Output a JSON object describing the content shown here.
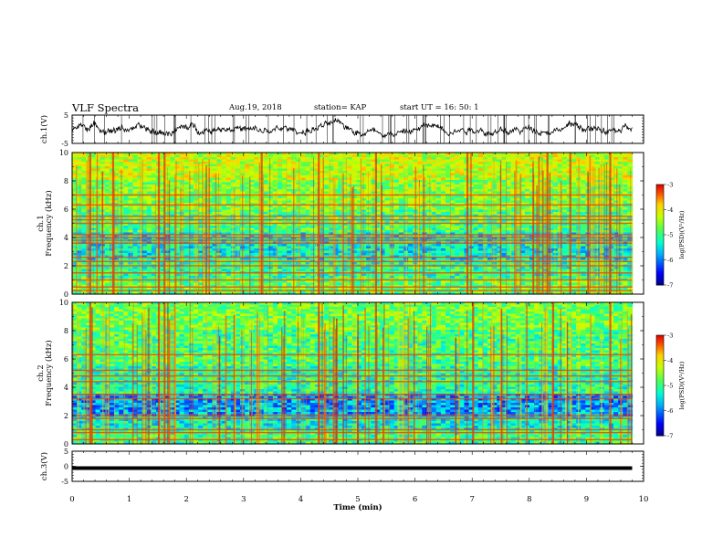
{
  "header": {
    "title": "VLF Spectra",
    "date": "Aug.19, 2018",
    "station": "station= KAP",
    "start": "start  UT =   16: 50: 1"
  },
  "chart_data": [
    {
      "type": "line",
      "name": "ch1-waveform",
      "ylabel": "ch.1(V)",
      "ylim": [
        -5,
        5
      ],
      "yticks": [
        "5",
        "-5"
      ],
      "xlim": [
        0,
        10
      ]
    },
    {
      "type": "heatmap",
      "name": "ch1-spectrogram",
      "ylabel": "ch.1\nFrequency (kHz)",
      "ylim": [
        0,
        10
      ],
      "yticks": [
        "0",
        "2",
        "4",
        "6",
        "8",
        "10"
      ],
      "xlim": [
        0,
        9.8
      ],
      "colorbar": {
        "label": "log(PSD)(V²/Hz)",
        "range": [
          -7,
          -3
        ],
        "ticks": [
          "-3",
          "-4",
          "-5",
          "-6",
          "-7"
        ]
      },
      "horizontal_bands_khz": [
        0.25,
        0.5,
        1.0,
        1.5,
        2.0,
        2.3,
        2.6,
        3.6,
        3.8,
        4.0,
        4.2,
        5.0,
        5.25,
        5.5,
        6.3,
        7.0
      ],
      "strong_vertical_events_min": [
        0.3,
        0.7,
        1.5,
        1.6,
        3.3,
        4.3,
        5.3,
        6.9,
        8.3,
        8.7,
        9.4
      ]
    },
    {
      "type": "heatmap",
      "name": "ch2-spectrogram",
      "ylabel": "ch.2\nFrequency (kHz)",
      "ylim": [
        0,
        10
      ],
      "yticks": [
        "0",
        "2",
        "4",
        "6",
        "8",
        "10"
      ],
      "xlim": [
        0,
        9.8
      ],
      "colorbar": {
        "label": "log(PSD)(V²/Hz)",
        "range": [
          -7,
          -3
        ],
        "ticks": [
          "-3",
          "-4",
          "-5",
          "-6",
          "-7"
        ]
      },
      "horizontal_bands_khz": [
        0.3,
        0.8,
        1.0,
        1.8,
        2.0,
        3.2,
        3.5,
        4.4,
        4.8,
        5.2,
        6.3
      ],
      "strong_vertical_events_min": [
        0.3,
        1.5,
        1.6,
        4.3,
        5.3,
        7.0,
        8.4,
        9.4
      ]
    },
    {
      "type": "line",
      "name": "ch3-waveform",
      "ylabel": "ch.3(V)",
      "ylim": [
        -5,
        5
      ],
      "yticks": [
        "5",
        "0",
        "-5"
      ],
      "xlim": [
        0,
        10
      ],
      "values": {
        "constant_v": -0.6
      }
    }
  ],
  "xaxis": {
    "label": "Time (min)",
    "ticks": [
      "0",
      "1",
      "2",
      "3",
      "4",
      "5",
      "6",
      "7",
      "8",
      "9",
      "10"
    ]
  }
}
